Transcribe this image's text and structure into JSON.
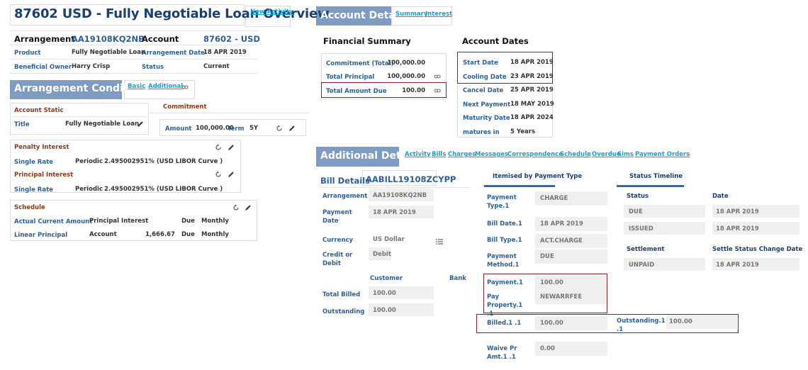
{
  "header": {
    "title": "87602 USD - Fully Negotiable Loan Overview",
    "action": "New Activity"
  },
  "arrangement_table": {
    "rows": [
      [
        "Arrangement",
        "AA19108KQ2NB",
        "Account",
        "87602 - USD"
      ],
      [
        "Product",
        "Fully Negotiable Loan",
        "Arrangement Date",
        "18 APR 2019"
      ],
      [
        "Beneficial Owner",
        "Harry Crisp",
        "Status",
        "Current"
      ]
    ]
  },
  "arrangement_conditions": {
    "title": "Arrangement Conditions",
    "tabs": [
      "Basic",
      "Additional"
    ],
    "account_static": {
      "title": "Account Static",
      "label": "Title",
      "value": "Fully Negotiable Loan"
    },
    "commitment": {
      "title": "Commitment",
      "amount_label": "Amount",
      "amount": "100,000.00",
      "term_label": "Term",
      "term": "5Y"
    },
    "interest": {
      "rows": [
        [
          "Penalty Interest"
        ],
        [
          "Single Rate",
          "Periodic",
          "2.495002951% (USD LIBOR Curve )"
        ],
        [
          "Principal Interest"
        ],
        [
          "Single Rate",
          "Periodic",
          "2.495002951% (USD LIBOR Curve )"
        ]
      ]
    },
    "schedule": {
      "title": "Schedule",
      "rows": [
        [
          "Actual Current Amount",
          "Principal Interest",
          "Due",
          "Monthly"
        ],
        [
          "Linear Principal",
          "Account",
          "1,666.67",
          "Due",
          "Monthly"
        ]
      ]
    }
  },
  "account_details": {
    "title": "Account Details",
    "tabs": [
      "Summary",
      "Interest"
    ],
    "financial_summary": {
      "title": "Financial Summary",
      "rows": [
        [
          "Commitment (Total)",
          "100,000.00"
        ],
        [
          "Total Principal",
          "100,000.00"
        ],
        [
          "Total Amount Due",
          "100.00"
        ]
      ]
    },
    "account_dates": {
      "title": "Account Dates",
      "rows": [
        [
          "Start Date",
          "18 APR 2019"
        ],
        [
          "Cooling Date",
          "23 APR 2019"
        ],
        [
          "Cancel Date",
          "25 APR 2019"
        ],
        [
          "Next Payment",
          "18 MAY 2019"
        ],
        [
          "Maturity Date",
          "18 APR 2024"
        ],
        [
          "matures in",
          "5 Years"
        ]
      ]
    }
  },
  "additional_details": {
    "title": "Additional Details",
    "tabs": [
      "Activity",
      "Bills",
      "Charges",
      "Messages",
      "Correspondence",
      "Schedule",
      "Overdue",
      "Sims",
      "Payment Orders"
    ],
    "bill_details": {
      "title": "Bill Details",
      "id": "AABILL19108ZCYPP",
      "fields": [
        [
          "Arrangement",
          "AA19108KQ2NB"
        ],
        [
          "Payment Date",
          "18 APR 2019"
        ],
        [
          "Currency",
          "US Dollar"
        ],
        [
          "Credit or Debit",
          "Debit"
        ]
      ],
      "columns": [
        "Customer",
        "Bank"
      ],
      "totals": [
        [
          "Total Billed",
          "100.00"
        ],
        [
          "Outstanding",
          "100.00"
        ]
      ]
    },
    "itemised": {
      "title": "Itemised by Payment Type",
      "fields": [
        [
          "Payment Type.1",
          "CHARGE"
        ],
        [
          "Bill Date.1",
          "18 APR 2019"
        ],
        [
          "Bill Type.1",
          "ACT.CHARGE"
        ],
        [
          "Payment Method.1",
          "DUE"
        ],
        [
          "Payment.1",
          "100.00"
        ],
        [
          "Pay Property.1 .1",
          "NEWARRFEE"
        ],
        [
          "Billed.1 .1",
          "100.00"
        ],
        [
          "Outstanding.1 .1",
          "100.00"
        ],
        [
          "Waive Pr Amt.1 .1",
          "0.00"
        ]
      ]
    },
    "status_timeline": {
      "title": "Status Timeline",
      "headers": [
        "Status",
        "Date"
      ],
      "rows": [
        [
          "DUE",
          "18 APR 2019"
        ],
        [
          "ISSUED",
          "18 APR 2019"
        ]
      ],
      "settlement_headers": [
        "Settlement",
        "Settle Status Change Date"
      ],
      "settlement_rows": [
        [
          "UNPAID",
          "18 APR 2019"
        ]
      ]
    }
  }
}
